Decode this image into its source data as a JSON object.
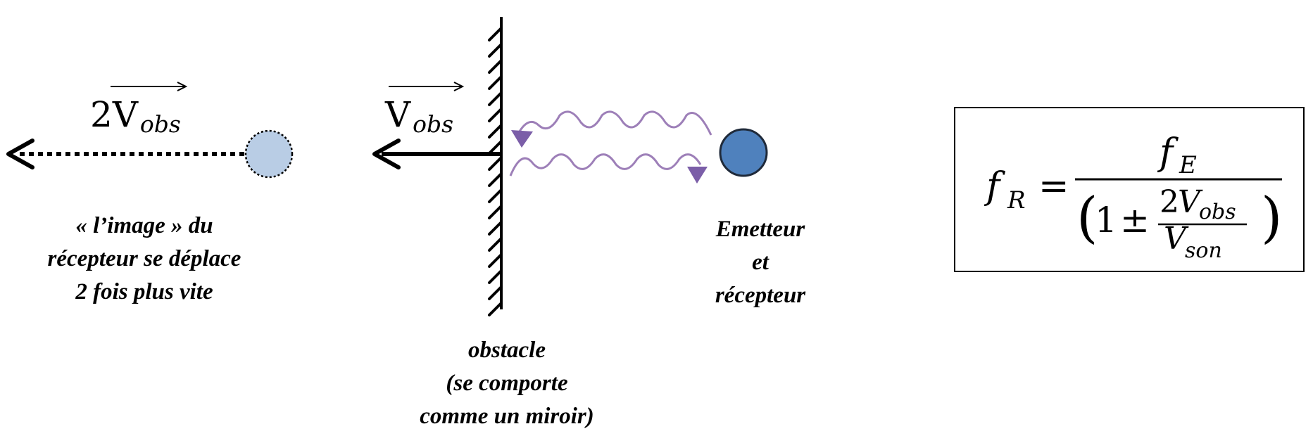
{
  "labels": {
    "image_vector": {
      "coeff": "2",
      "symbol": "V",
      "sub": "obs"
    },
    "obstacle_vector": {
      "symbol": "V",
      "sub": "obs"
    },
    "image_caption": [
      "« l’image » du",
      "récepteur se déplace",
      "2 fois plus vite"
    ],
    "emitter_caption": [
      "Emetteur",
      "et",
      "récepteur"
    ],
    "obstacle_caption": [
      "obstacle",
      "(se comporte",
      "comme un miroir)"
    ]
  },
  "formula": {
    "lhs_symbol": "f",
    "lhs_sub": "R",
    "equals": "=",
    "num_symbol": "f",
    "num_sub": "E",
    "one": "1",
    "plusminus": "±",
    "inner_num_coeff": "2",
    "inner_num_symbol": "V",
    "inner_num_sub": "obs",
    "inner_den_symbol": "V",
    "inner_den_sub": "son",
    "open_paren": "(",
    "close_paren": ")"
  },
  "colors": {
    "ink": "#000000",
    "wave": "#9d7fb8",
    "wave_arrow": "#7b5ea8",
    "emitter_fill": "#4f81bd",
    "emitter_stroke": "#1f2a3a",
    "image_fill": "#b9cde5"
  }
}
